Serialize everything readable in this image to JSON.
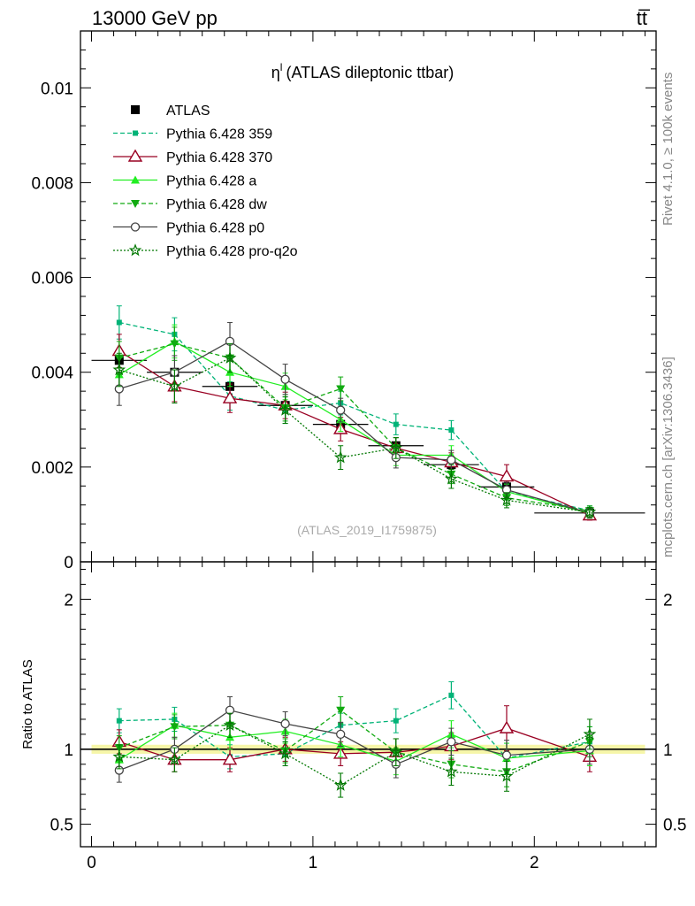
{
  "header": {
    "left": "13000 GeV pp",
    "right": "tt̅"
  },
  "side_texts": {
    "rivet": "Rivet 4.1.0, ≥ 100k events",
    "mcplots": "mcplots.cern.ch [arXiv:1306.3436]"
  },
  "colors": {
    "ATLAS": "#000000",
    "Pythia 6.428 359": "#00b377",
    "Pythia 6.428 370": "#990022",
    "Pythia 6.428 a": "#22ee22",
    "Pythia 6.428 dw": "#11aa11",
    "Pythia 6.428 p0": "#444444",
    "Pythia 6.428 pro-q2o": "#007700",
    "band": "#f6f6a8"
  },
  "chart_data": [
    {
      "panel": "main",
      "type": "scatter",
      "title": "ηˡ (ATLAS dileptonic ttbar)",
      "title_base": "η",
      "title_sup": "l",
      "title_rest": "(ATLAS dileptonic ttbar)",
      "watermark": "(ATLAS_2019_I1759875)",
      "xlabel": "",
      "ylabel": "",
      "xlim": [
        -0.05,
        2.55
      ],
      "ylim": [
        0,
        0.0112
      ],
      "yticks": [
        0,
        0.002,
        0.004,
        0.006,
        0.008,
        0.01
      ],
      "ytick_labels": [
        "0",
        "0.002",
        "0.004",
        "0.006",
        "0.008",
        "0.01"
      ],
      "x": [
        0.125,
        0.375,
        0.625,
        0.875,
        1.125,
        1.375,
        1.625,
        1.875,
        2.25
      ],
      "x_bin_edges": [
        0,
        0.25,
        0.5,
        0.75,
        1.0,
        1.25,
        1.5,
        1.75,
        2.0,
        2.5
      ],
      "legend_position": "top-left",
      "series": [
        {
          "name": "ATLAS",
          "marker": "filled-square",
          "line": "none",
          "values": [
            0.00425,
            0.004,
            0.0037,
            0.0033,
            0.0029,
            0.00245,
            0.00205,
            0.00158,
            0.00103
          ],
          "errors": [
            0.0001,
            0.0001,
            0.0001,
            9e-05,
            8e-05,
            7e-05,
            6e-05,
            5e-05,
            4e-05
          ]
        },
        {
          "name": "Pythia 6.428 359",
          "marker": "filled-square-small",
          "line": "dashed",
          "values": [
            0.00505,
            0.0048,
            0.0035,
            0.0032,
            0.00335,
            0.0029,
            0.00278,
            0.00148,
            0.00108
          ],
          "errors": [
            0.00035,
            0.00035,
            0.0003,
            0.00028,
            0.00025,
            0.00022,
            0.0002,
            0.00016,
            0.0001
          ]
        },
        {
          "name": "Pythia 6.428 370",
          "marker": "open-triangle",
          "line": "solid",
          "values": [
            0.00445,
            0.0037,
            0.00345,
            0.0033,
            0.0028,
            0.0024,
            0.0021,
            0.0018,
            0.00098
          ],
          "errors": [
            0.00035,
            0.00032,
            0.0003,
            0.00028,
            0.00025,
            0.00022,
            0.0002,
            0.00025,
            0.0001
          ]
        },
        {
          "name": "Pythia 6.428 a",
          "marker": "filled-triangle",
          "line": "solid",
          "values": [
            0.00395,
            0.00465,
            0.004,
            0.0037,
            0.003,
            0.00225,
            0.00225,
            0.00148,
            0.00102
          ],
          "errors": [
            0.00035,
            0.00035,
            0.0003,
            0.00028,
            0.00025,
            0.00022,
            0.0002,
            0.00016,
            0.0001
          ]
        },
        {
          "name": "Pythia 6.428 dw",
          "marker": "filled-triangle-down",
          "line": "dashed",
          "values": [
            0.0043,
            0.0046,
            0.0043,
            0.00325,
            0.00365,
            0.0024,
            0.00185,
            0.00135,
            0.00108
          ],
          "errors": [
            0.00035,
            0.00035,
            0.0003,
            0.00028,
            0.00025,
            0.00022,
            0.0002,
            0.00016,
            0.0001
          ]
        },
        {
          "name": "Pythia 6.428 p0",
          "marker": "open-circle",
          "line": "solid",
          "values": [
            0.00365,
            0.004,
            0.00465,
            0.00385,
            0.0032,
            0.0022,
            0.00215,
            0.00152,
            0.00103
          ],
          "errors": [
            0.00035,
            0.00035,
            0.0004,
            0.00032,
            0.00025,
            0.00022,
            0.0002,
            0.00016,
            0.0001
          ]
        },
        {
          "name": "Pythia 6.428 pro-q2o",
          "marker": "open-star",
          "line": "dotted",
          "values": [
            0.00405,
            0.0037,
            0.0043,
            0.0032,
            0.0022,
            0.0024,
            0.00175,
            0.0013,
            0.00105
          ],
          "errors": [
            0.00035,
            0.00035,
            0.0003,
            0.00028,
            0.00025,
            0.00022,
            0.0002,
            0.00016,
            0.0001
          ]
        }
      ]
    },
    {
      "panel": "ratio",
      "type": "scatter",
      "ylabel": "Ratio to ATLAS",
      "xlabel": "",
      "xlim": [
        -0.05,
        2.55
      ],
      "ylim": [
        0.35,
        2.25
      ],
      "yticks": [
        0.5,
        1,
        2
      ],
      "ytick_labels": [
        "0.5",
        "1",
        "2"
      ],
      "xticks": [
        0,
        1,
        2
      ],
      "xtick_labels": [
        "0",
        "1",
        "2"
      ],
      "reference_line": 1,
      "band_halfwidth": 0.03,
      "x": [
        0.125,
        0.375,
        0.625,
        0.875,
        1.125,
        1.375,
        1.625,
        1.875,
        2.25
      ],
      "series": [
        {
          "name": "Pythia 6.428 359",
          "values": [
            1.19,
            1.2,
            0.95,
            0.97,
            1.16,
            1.19,
            1.36,
            0.94,
            1.05
          ],
          "errors": [
            0.08,
            0.08,
            0.08,
            0.08,
            0.08,
            0.08,
            0.09,
            0.1,
            0.1
          ]
        },
        {
          "name": "Pythia 6.428 370",
          "values": [
            1.05,
            0.93,
            0.93,
            1.0,
            0.97,
            0.98,
            1.02,
            1.14,
            0.95
          ],
          "errors": [
            0.08,
            0.08,
            0.08,
            0.08,
            0.08,
            0.09,
            0.09,
            0.15,
            0.1
          ]
        },
        {
          "name": "Pythia 6.428 a",
          "values": [
            0.93,
            1.16,
            1.08,
            1.12,
            1.03,
            0.92,
            1.1,
            0.94,
            0.99
          ],
          "errors": [
            0.08,
            0.08,
            0.08,
            0.08,
            0.08,
            0.09,
            0.09,
            0.1,
            0.1
          ]
        },
        {
          "name": "Pythia 6.428 dw",
          "values": [
            1.01,
            1.15,
            1.16,
            0.99,
            1.26,
            0.98,
            0.9,
            0.85,
            1.05
          ],
          "errors": [
            0.08,
            0.08,
            0.08,
            0.08,
            0.09,
            0.09,
            0.09,
            0.1,
            0.1
          ]
        },
        {
          "name": "Pythia 6.428 p0",
          "values": [
            0.86,
            1.0,
            1.26,
            1.17,
            1.1,
            0.9,
            1.05,
            0.96,
            1.0
          ],
          "errors": [
            0.08,
            0.08,
            0.09,
            0.08,
            0.08,
            0.09,
            0.09,
            0.1,
            0.1
          ]
        },
        {
          "name": "Pythia 6.428 pro-q2o",
          "values": [
            0.95,
            0.93,
            1.16,
            0.97,
            0.76,
            0.98,
            0.85,
            0.82,
            1.1
          ],
          "errors": [
            0.08,
            0.08,
            0.08,
            0.08,
            0.08,
            0.09,
            0.09,
            0.1,
            0.1
          ]
        }
      ]
    }
  ]
}
